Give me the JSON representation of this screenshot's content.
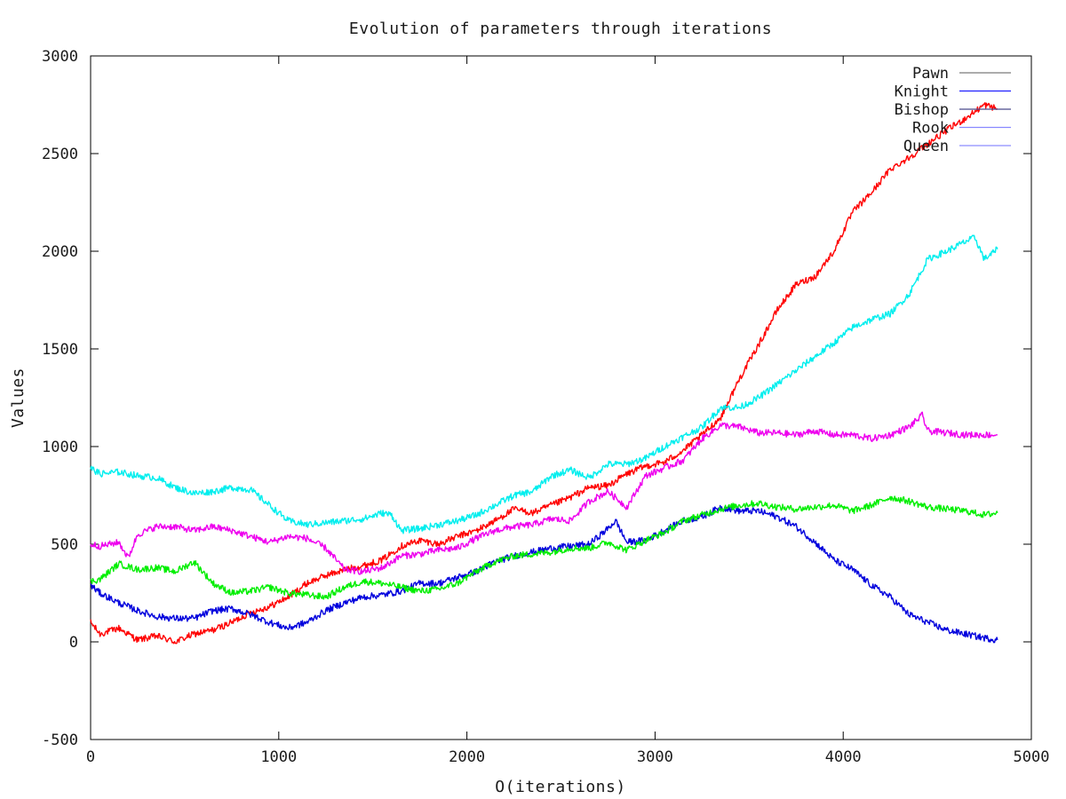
{
  "chart_data": {
    "type": "line",
    "title": "Evolution of parameters through iterations",
    "xlabel": "O(iterations)",
    "ylabel": "Values",
    "xlim": [
      0,
      5000
    ],
    "ylim": [
      -500,
      3000
    ],
    "xticks": [
      0,
      1000,
      2000,
      3000,
      4000,
      5000
    ],
    "yticks": [
      -500,
      0,
      500,
      1000,
      1500,
      2000,
      2500,
      3000
    ],
    "grid": false,
    "legend_position": "top-right",
    "legend": [
      {
        "name": "Pawn",
        "color": "#7a7a7a"
      },
      {
        "name": "Knight",
        "color": "#2020ff"
      },
      {
        "name": "Bishop",
        "color": "#4b4b8c"
      },
      {
        "name": "Rook",
        "color": "#8888ff"
      },
      {
        "name": "Queen",
        "color": "#8c8cff"
      }
    ],
    "series": [
      {
        "color": "#ff0000",
        "x": [
          0,
          50,
          150,
          250,
          350,
          450,
          550,
          650,
          750,
          850,
          950,
          1050,
          1150,
          1250,
          1350,
          1450,
          1550,
          1650,
          1750,
          1850,
          1950,
          2050,
          2150,
          2250,
          2350,
          2450,
          2550,
          2650,
          2750,
          2850,
          2950,
          3050,
          3150,
          3250,
          3350,
          3450,
          3550,
          3650,
          3750,
          3850,
          3950,
          4050,
          4150,
          4250,
          4350,
          4450,
          4550,
          4650,
          4750,
          4820
        ],
        "y": [
          100,
          40,
          70,
          10,
          30,
          0,
          40,
          60,
          100,
          150,
          180,
          230,
          300,
          340,
          370,
          390,
          420,
          490,
          520,
          500,
          540,
          570,
          620,
          680,
          660,
          700,
          740,
          790,
          800,
          860,
          900,
          920,
          980,
          1060,
          1150,
          1350,
          1520,
          1700,
          1830,
          1870,
          2000,
          2200,
          2300,
          2420,
          2480,
          2550,
          2620,
          2680,
          2750,
          2730
        ]
      },
      {
        "color": "#0000dd",
        "x": [
          0,
          50,
          150,
          250,
          350,
          450,
          550,
          650,
          750,
          850,
          950,
          1050,
          1150,
          1250,
          1350,
          1450,
          1550,
          1650,
          1750,
          1850,
          1950,
          2050,
          2150,
          2250,
          2350,
          2450,
          2550,
          2650,
          2750,
          2790,
          2850,
          2950,
          3050,
          3150,
          3250,
          3350,
          3450,
          3550,
          3650,
          3750,
          3850,
          3950,
          4050,
          4150,
          4250,
          4350,
          4450,
          4550,
          4650,
          4750,
          4820
        ],
        "y": [
          290,
          250,
          200,
          160,
          130,
          120,
          120,
          160,
          170,
          140,
          100,
          70,
          100,
          160,
          200,
          230,
          240,
          260,
          300,
          300,
          330,
          360,
          410,
          440,
          460,
          480,
          490,
          500,
          580,
          620,
          510,
          520,
          570,
          620,
          640,
          690,
          670,
          670,
          640,
          590,
          510,
          420,
          370,
          290,
          230,
          140,
          100,
          60,
          40,
          20,
          10
        ]
      },
      {
        "color": "#00ee00",
        "x": [
          0,
          50,
          150,
          250,
          350,
          450,
          550,
          650,
          750,
          850,
          950,
          1050,
          1150,
          1250,
          1350,
          1450,
          1550,
          1650,
          1750,
          1850,
          1950,
          2050,
          2150,
          2250,
          2350,
          2450,
          2550,
          2650,
          2750,
          2850,
          2950,
          3050,
          3150,
          3250,
          3350,
          3450,
          3550,
          3650,
          3750,
          3850,
          3950,
          4050,
          4150,
          4250,
          4350,
          4450,
          4550,
          4650,
          4750,
          4820
        ],
        "y": [
          310,
          320,
          400,
          370,
          380,
          360,
          410,
          300,
          250,
          260,
          280,
          250,
          240,
          230,
          280,
          310,
          300,
          280,
          260,
          270,
          300,
          360,
          410,
          440,
          450,
          460,
          480,
          480,
          510,
          470,
          520,
          560,
          620,
          650,
          680,
          700,
          710,
          690,
          680,
          690,
          700,
          670,
          700,
          740,
          720,
          690,
          680,
          670,
          650,
          660
        ]
      },
      {
        "color": "#ee00ee",
        "x": [
          0,
          50,
          150,
          200,
          250,
          350,
          450,
          550,
          650,
          750,
          850,
          950,
          1050,
          1150,
          1250,
          1350,
          1450,
          1550,
          1650,
          1750,
          1850,
          1950,
          2050,
          2150,
          2250,
          2350,
          2450,
          2550,
          2650,
          2750,
          2850,
          2950,
          3050,
          3150,
          3250,
          3350,
          3450,
          3550,
          3650,
          3750,
          3850,
          3950,
          4050,
          4150,
          4250,
          4350,
          4420,
          4450,
          4550,
          4650,
          4750,
          4820
        ],
        "y": [
          500,
          490,
          510,
          430,
          550,
          590,
          590,
          570,
          590,
          570,
          540,
          510,
          540,
          530,
          480,
          370,
          360,
          380,
          440,
          450,
          470,
          480,
          530,
          570,
          590,
          600,
          630,
          620,
          720,
          770,
          690,
          850,
          890,
          930,
          1040,
          1110,
          1100,
          1070,
          1070,
          1060,
          1080,
          1060,
          1060,
          1040,
          1060,
          1100,
          1160,
          1080,
          1070,
          1060,
          1060,
          1060
        ]
      },
      {
        "color": "#00eeee",
        "x": [
          0,
          50,
          150,
          250,
          350,
          450,
          550,
          650,
          750,
          850,
          950,
          1050,
          1150,
          1250,
          1350,
          1450,
          1550,
          1600,
          1650,
          1750,
          1850,
          1950,
          2050,
          2150,
          2250,
          2350,
          2450,
          2550,
          2650,
          2750,
          2850,
          2950,
          3050,
          3150,
          3250,
          3350,
          3450,
          3550,
          3650,
          3750,
          3850,
          3950,
          4050,
          4150,
          4250,
          4350,
          4450,
          4550,
          4650,
          4700,
          4750,
          4820
        ],
        "y": [
          890,
          860,
          870,
          850,
          840,
          790,
          760,
          770,
          790,
          780,
          700,
          620,
          600,
          610,
          620,
          630,
          660,
          650,
          570,
          580,
          600,
          620,
          650,
          700,
          750,
          770,
          850,
          880,
          840,
          910,
          910,
          940,
          1000,
          1050,
          1100,
          1200,
          1200,
          1250,
          1320,
          1390,
          1460,
          1530,
          1610,
          1650,
          1680,
          1780,
          1960,
          2000,
          2050,
          2070,
          1960,
          2010
        ]
      }
    ]
  }
}
